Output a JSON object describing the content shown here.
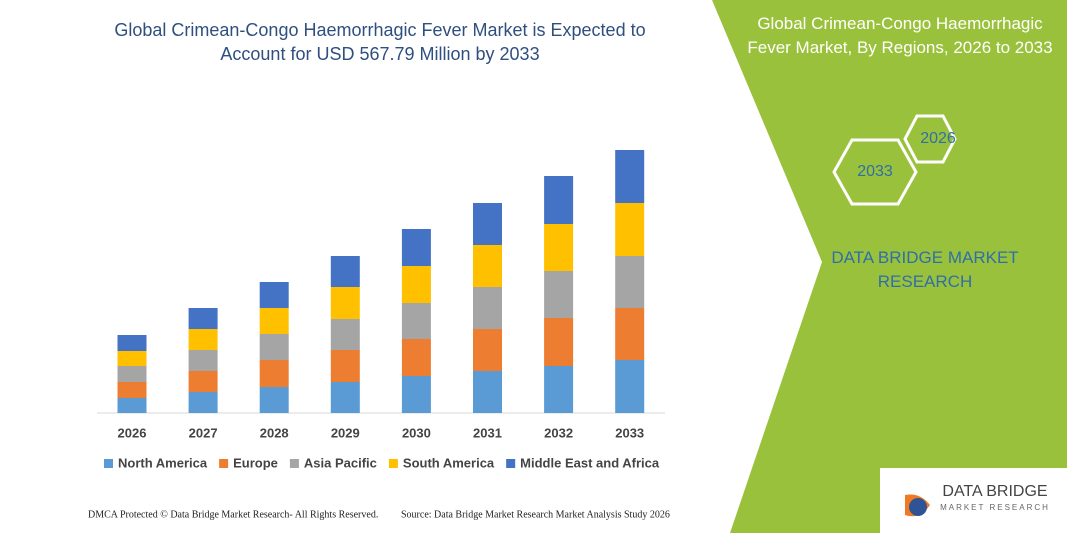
{
  "chart_data": {
    "type": "stacked_bar",
    "title": "Global Crimean-Congo Haemorrhagic Fever Market is Expected to Account for USD 567.79 Million by 2033",
    "categories": [
      "2026",
      "2027",
      "2028",
      "2029",
      "2030",
      "2031",
      "2032",
      "2033"
    ],
    "series": [
      {
        "name": "North America",
        "color": "#5b9bd5",
        "values": [
          15,
          21,
          26,
          31,
          37,
          42,
          47,
          53
        ]
      },
      {
        "name": "Europe",
        "color": "#ed7d31",
        "values": [
          16,
          21,
          27,
          32,
          37,
          42,
          48,
          52
        ]
      },
      {
        "name": "Asia Pacific",
        "color": "#a5a5a5",
        "values": [
          16,
          21,
          26,
          31,
          36,
          42,
          47,
          52
        ]
      },
      {
        "name": "South America",
        "color": "#ffc000",
        "values": [
          15,
          21,
          26,
          32,
          37,
          42,
          47,
          53
        ]
      },
      {
        "name": "Middle East and Africa",
        "color": "#4472c4",
        "values": [
          16,
          21,
          26,
          31,
          37,
          42,
          48,
          53
        ]
      }
    ]
  },
  "side_panel": {
    "title": "Global Crimean-Congo Haemorrhagic Fever Market, By Regions, 2026 to 2033",
    "hex_front": "2033",
    "hex_back": "2026",
    "brand": "DATA BRIDGE MARKET RESEARCH"
  },
  "logo": {
    "name": "DATA BRIDGE",
    "tagline": "MARKET RESEARCH"
  },
  "footer": {
    "left": "DMCA Protected © Data Bridge Market Research- All Rights Reserved.",
    "right": "Source: Data Bridge Market Research Market Analysis Study 2026"
  }
}
